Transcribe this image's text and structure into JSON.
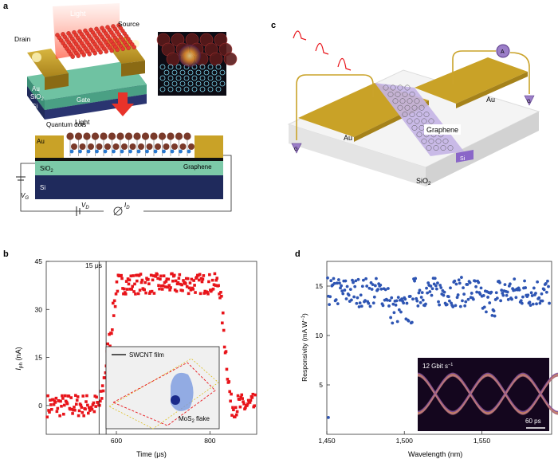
{
  "panels": {
    "a": "a",
    "b": "b",
    "c": "c",
    "d": "d"
  },
  "panel_a": {
    "light_top": "Light",
    "source": "Source",
    "drain": "Drain",
    "au": "Au",
    "sio2": "SiO",
    "sio2_sub": "2",
    "gate": "Gate",
    "si": "Si",
    "light_bottom": "Light",
    "quantum_dots": "Quantum dots",
    "au2": "Au",
    "graphene": "Graphene",
    "sio2_b": "SiO",
    "sio2_b_sub": "2",
    "si_b": "Si",
    "vg": "V",
    "vg_sub": "G",
    "vd": "V",
    "vd_sub": "D",
    "id": "I",
    "id_sub": "D",
    "colors": {
      "gold": "#c9a227",
      "sio2": "#7cc9a8",
      "si": "#1f2a5c",
      "dot": "#7a3a2a",
      "light": "#e8332a"
    }
  },
  "panel_c": {
    "au_left": "Au",
    "au_right": "Au",
    "graphene": "Graphene",
    "si": "Si",
    "sio2": "SiO",
    "sio2_sub": "2",
    "probe_a": "A",
    "probe_g1": "G",
    "probe_g2": "G",
    "colors": {
      "gold": "#c9a227",
      "channel": "#b9a6e0",
      "substrate": "#f1f1f1"
    }
  },
  "chart_b": {
    "type": "scatter",
    "ylabel": "I",
    "ylabel_sub": "ph",
    "ylabel_unit": "(nA)",
    "xlabel": "Time (μs)",
    "annotation": "15 μs",
    "xticks": [
      600,
      800
    ],
    "yticks": [
      0,
      15,
      30,
      45
    ],
    "xlim": [
      450,
      900
    ],
    "ylim": [
      -9,
      45
    ],
    "inset_labels": {
      "swcnt": "SWCNT film",
      "mos2": "MoS",
      "mos2_sub": "2",
      "flake": "flake"
    },
    "series_color": "#e8141a"
  },
  "chart_d": {
    "type": "scatter",
    "ylabel": "Responsivity (mA W",
    "ylabel_sup": "−1",
    "ylabel_end": ")",
    "xlabel": "Wavelength (nm)",
    "xticks": [
      "1,450",
      "1,500",
      "1,550"
    ],
    "xtick_values": [
      1450,
      1500,
      1550
    ],
    "yticks": [
      5,
      10,
      15
    ],
    "xlim": [
      1450,
      1595
    ],
    "ylim": [
      0,
      17.5
    ],
    "series_color": "#2e55b3",
    "inset_label": "12 Gbit s",
    "inset_label_sup": "−1",
    "inset_scale": "60 ps"
  }
}
